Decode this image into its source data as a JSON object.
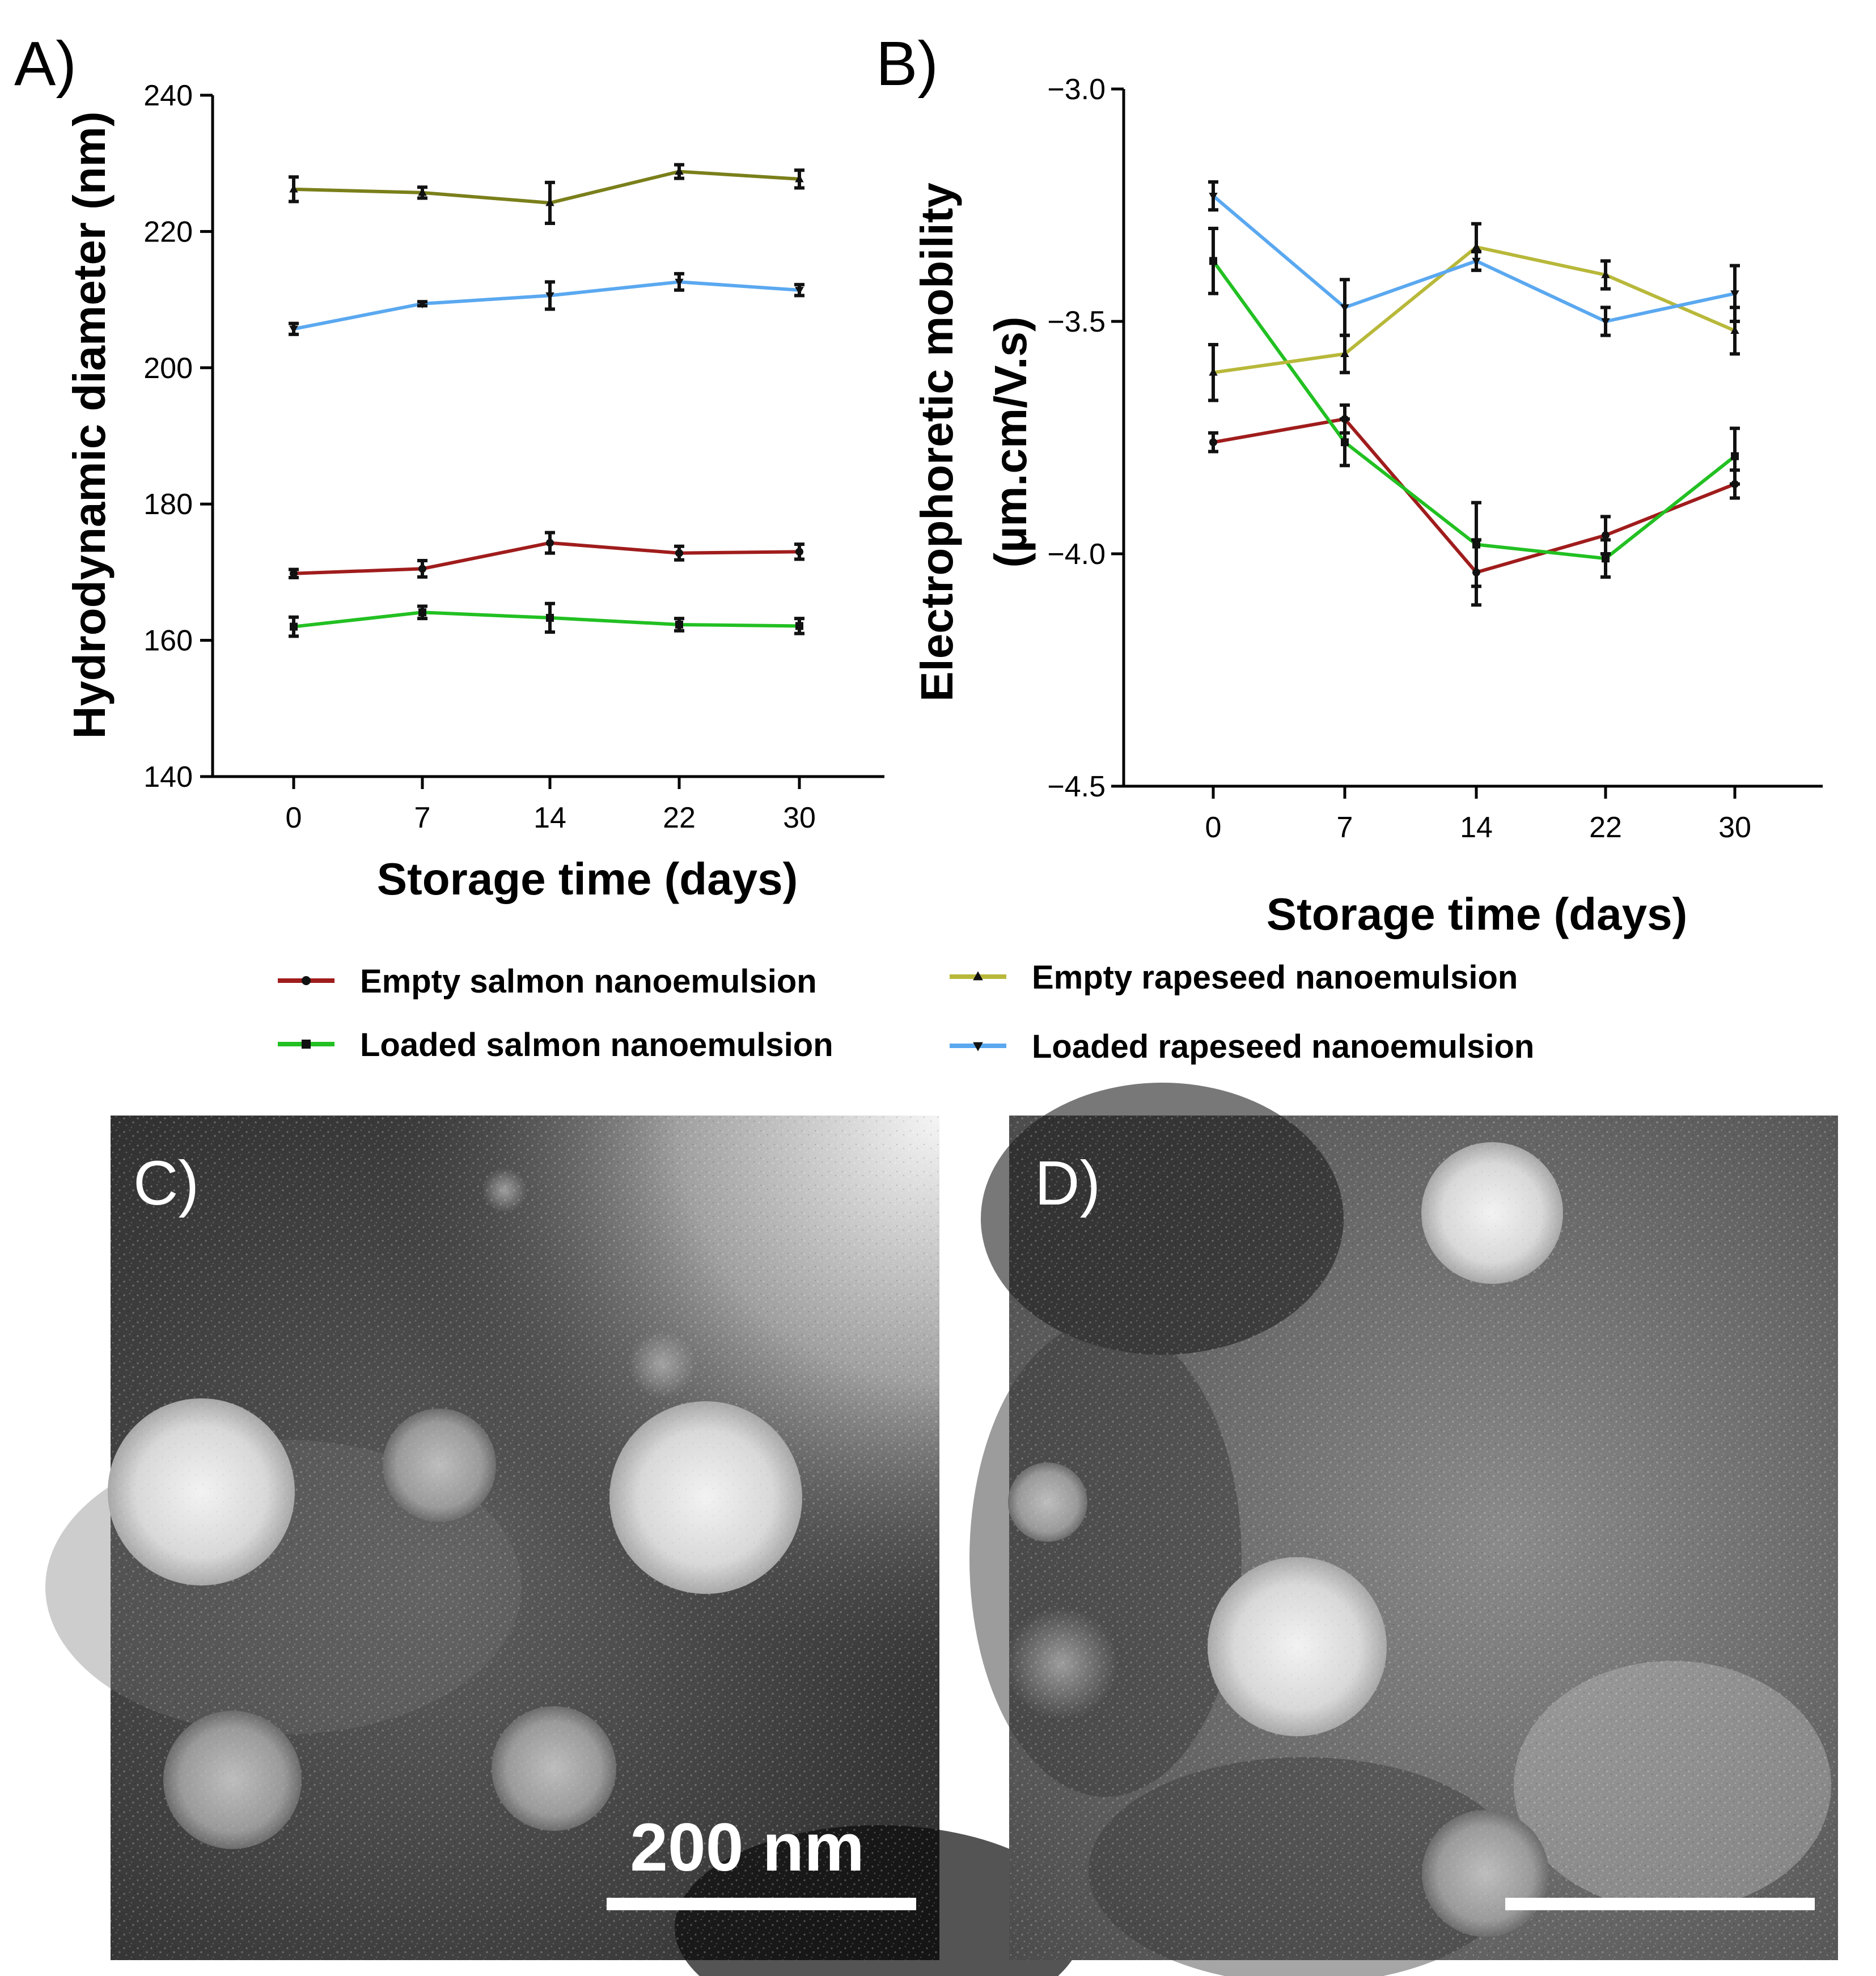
{
  "chart_data": [
    {
      "panel": "A)",
      "type": "line",
      "xlabel": "Storage time (days)",
      "ylabel": "Hydrodynamic diameter (nm)",
      "categories": [
        "0",
        "7",
        "14",
        "22",
        "30"
      ],
      "ylim": [
        140,
        240
      ],
      "yticks": [
        "140",
        "160",
        "180",
        "200",
        "220",
        "240"
      ],
      "series": [
        {
          "name": "Empty salmon nanoemulsion",
          "color": "#a01c1c",
          "marker": "circle",
          "values": [
            169.8,
            170.5,
            174.3,
            172.8,
            173.0
          ],
          "errors": [
            0.6,
            1.2,
            1.5,
            1.0,
            1.1
          ]
        },
        {
          "name": "Loaded salmon nanoemulsion",
          "color": "#22c022",
          "marker": "square",
          "values": [
            162.0,
            164.1,
            163.3,
            162.3,
            162.1
          ],
          "errors": [
            1.4,
            0.9,
            2.1,
            0.9,
            1.1
          ]
        },
        {
          "name": "Empty rapeseed nanoemulsion",
          "color": "#7a7f1a",
          "marker": "triangle-up",
          "values": [
            226.2,
            225.7,
            224.2,
            228.8,
            227.7
          ],
          "errors": [
            1.8,
            0.8,
            3.0,
            1.0,
            1.3
          ]
        },
        {
          "name": "Loaded rapeseed nanoemulsion",
          "color": "#5aa8f0",
          "marker": "triangle-down",
          "values": [
            205.7,
            209.4,
            210.6,
            212.6,
            211.4
          ],
          "errors": [
            0.8,
            0.3,
            2.0,
            1.2,
            0.8
          ]
        }
      ]
    },
    {
      "panel": "B)",
      "type": "line",
      "xlabel": "Storage time (days)",
      "ylabel_line1": "Electrophoretic mobility",
      "ylabel_line2": "(µm.cm/V.s)",
      "categories": [
        "0",
        "7",
        "14",
        "22",
        "30"
      ],
      "ylim": [
        -4.5,
        -3.0
      ],
      "yticks": [
        "-4.5",
        "-4.0",
        "-3.5",
        "-3.0"
      ],
      "series": [
        {
          "name": "Empty salmon nanoemulsion",
          "color": "#a01c1c",
          "marker": "circle",
          "values": [
            -3.76,
            -3.71,
            -4.04,
            -3.96,
            -3.85
          ],
          "errors": [
            0.02,
            0.03,
            0.07,
            0.04,
            0.03
          ]
        },
        {
          "name": "Loaded salmon nanoemulsion",
          "color": "#22c022",
          "marker": "square",
          "values": [
            -3.37,
            -3.76,
            -3.98,
            -4.01,
            -3.79
          ],
          "errors": [
            0.07,
            0.05,
            0.09,
            0.04,
            0.06
          ]
        },
        {
          "name": "Empty rapeseed nanoemulsion",
          "color": "#b8b83a",
          "marker": "triangle-up",
          "values": [
            -3.61,
            -3.57,
            -3.34,
            -3.4,
            -3.52
          ],
          "errors": [
            0.06,
            0.04,
            0.05,
            0.03,
            0.05
          ]
        },
        {
          "name": "Loaded rapeseed nanoemulsion",
          "color": "#5aa8f0",
          "marker": "triangle-down",
          "values": [
            -3.23,
            -3.47,
            -3.37,
            -3.5,
            -3.44
          ],
          "errors": [
            0.03,
            0.06,
            0.02,
            0.03,
            0.06
          ]
        }
      ]
    }
  ],
  "legend": [
    {
      "label": "Empty salmon nanoemulsion",
      "color": "#a01c1c",
      "marker": "circle"
    },
    {
      "label": "Loaded salmon nanoemulsion",
      "color": "#22c022",
      "marker": "square"
    },
    {
      "label": "Empty rapeseed nanoemulsion",
      "color": "#b8b83a",
      "marker": "triangle-up"
    },
    {
      "label": "Loaded rapeseed nanoemulsion",
      "color": "#5aa8f0",
      "marker": "triangle-down"
    }
  ],
  "micrographs": [
    {
      "panel": "C)",
      "scale_bar_label": "200 nm"
    },
    {
      "panel": "D)"
    }
  ]
}
